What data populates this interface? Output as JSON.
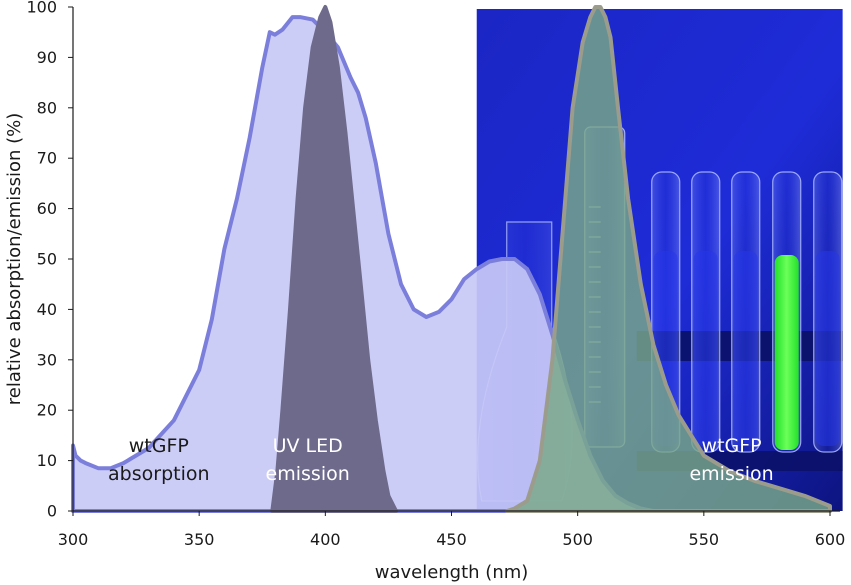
{
  "chart_data": {
    "type": "area",
    "title": "",
    "xlabel": "wavelength (nm)",
    "ylabel": "relative absorption/emission (%)",
    "xlim": [
      300,
      600
    ],
    "ylim": [
      0,
      100
    ],
    "xticks": [
      300,
      350,
      400,
      450,
      500,
      550,
      600
    ],
    "yticks": [
      0,
      10,
      20,
      30,
      40,
      50,
      60,
      70,
      80,
      90,
      100
    ],
    "grid": false,
    "legend": "none",
    "background_photo_x_range": [
      460,
      605
    ],
    "series": [
      {
        "name": "wtGFP absorption",
        "color": "#7B7FDB",
        "fill": "#C8C9F6",
        "x": [
          300,
          301,
          303,
          305,
          310,
          315,
          320,
          330,
          340,
          350,
          355,
          360,
          365,
          370,
          375,
          378,
          380,
          383,
          387,
          390,
          395,
          400,
          405,
          410,
          413,
          416,
          420,
          425,
          430,
          435,
          440,
          445,
          450,
          455,
          460,
          465,
          470,
          475,
          480,
          485,
          490,
          495,
          500,
          505,
          510,
          515,
          520,
          525,
          530
        ],
        "y": [
          13,
          11,
          10,
          9.5,
          8.5,
          8.5,
          9.5,
          12.5,
          18,
          28,
          38,
          52,
          62,
          74,
          88,
          95,
          94.5,
          95.5,
          98,
          98,
          97.5,
          95,
          92,
          86,
          83,
          78,
          69,
          55,
          45,
          40,
          38.5,
          39.5,
          42,
          46,
          48,
          49.5,
          50,
          50,
          48,
          43,
          35,
          26,
          18,
          11,
          6,
          3,
          1.5,
          0.5,
          0
        ]
      },
      {
        "name": "UV LED emission",
        "color": "#6E6A8C",
        "fill": "#6E6A8C",
        "x": [
          379,
          381,
          383,
          386,
          389,
          392,
          395,
          398,
          400,
          402,
          405,
          408,
          411,
          414,
          417,
          420,
          423,
          425,
          428
        ],
        "y": [
          0,
          8,
          20,
          40,
          62,
          80,
          92,
          98,
          100,
          97,
          88,
          75,
          60,
          45,
          30,
          18,
          8,
          3,
          0
        ]
      },
      {
        "name": "wtGFP emission",
        "color": "#9C9C8C",
        "fill": "#79A887",
        "x": [
          472,
          475,
          480,
          485,
          490,
          494,
          498,
          502,
          505,
          507,
          509,
          511,
          513,
          516,
          520,
          525,
          530,
          535,
          540,
          545,
          550,
          560,
          570,
          580,
          590,
          600
        ],
        "y": [
          0,
          0.5,
          2,
          10,
          30,
          55,
          80,
          93,
          98,
          100,
          100,
          98,
          94,
          80,
          62,
          45,
          33,
          25,
          19,
          15,
          11,
          8,
          6,
          4.5,
          3,
          1
        ]
      }
    ],
    "annotations": [
      {
        "lines": [
          "wtGFP",
          "absorption"
        ],
        "x": 334,
        "y": 5,
        "color": "#1a1a1a"
      },
      {
        "lines": [
          "UV LED",
          "emission"
        ],
        "x": 393,
        "y": 5,
        "color": "#ffffff"
      },
      {
        "lines": [
          "wtGFP",
          "emission"
        ],
        "x": 561,
        "y": 5,
        "color": "#ffffff"
      }
    ]
  }
}
